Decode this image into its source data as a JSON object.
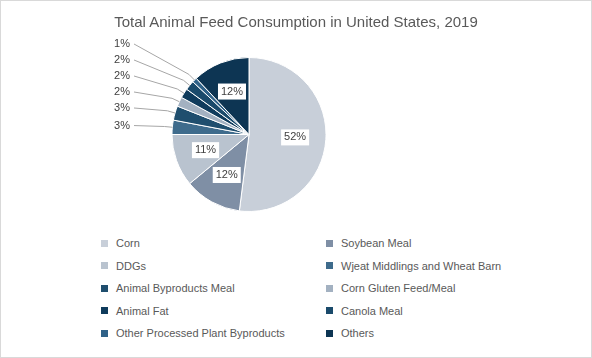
{
  "chart_data": {
    "type": "pie",
    "title": "Total Animal Feed Consumption in United States, 2019",
    "categories": [
      "Corn",
      "Soybean Meal",
      "DDGs",
      "Wjeat Middlings and Wheat Barn",
      "Animal Byproducts Meal",
      "Corn Gluten Feed/Meal",
      "Animal Fat",
      "Canola Meal",
      "Other Processed Plant Byproducts",
      "Others"
    ],
    "values": [
      52,
      12,
      11,
      3,
      3,
      2,
      2,
      2,
      1,
      12
    ],
    "value_labels": [
      "52%",
      "12%",
      "11%",
      "3%",
      "3%",
      "2%",
      "2%",
      "2%",
      "1%",
      "12%"
    ],
    "colors": [
      "#c8cfd9",
      "#7f8fa5",
      "#b9c3cf",
      "#3e6b8c",
      "#1f4e6e",
      "#a3b1c1",
      "#0f3b5c",
      "#1a4a6b",
      "#2f6288",
      "#0d3553"
    ],
    "legend": "bottom",
    "data_labels": true
  }
}
